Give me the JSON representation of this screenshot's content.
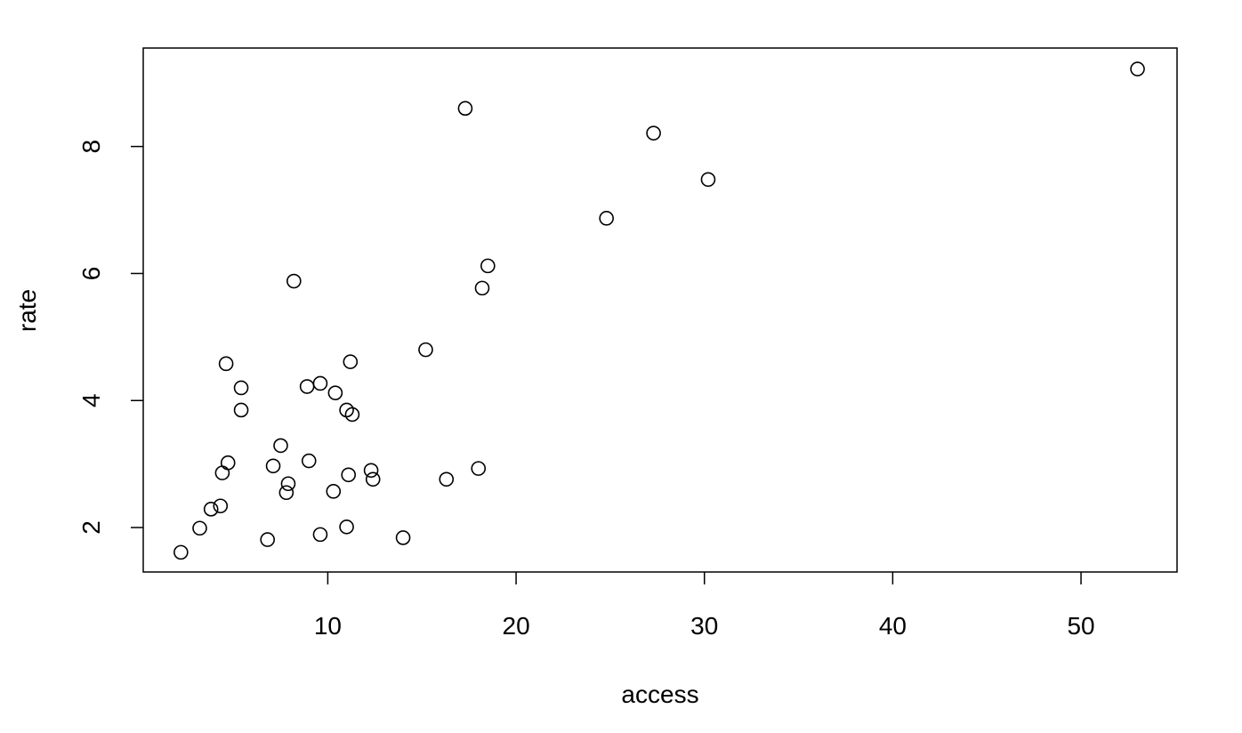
{
  "chart_data": {
    "type": "scatter",
    "title": "",
    "xlabel": "access",
    "ylabel": "rate",
    "xlim": [
      0.2,
      55.1
    ],
    "ylim": [
      1.3,
      9.55
    ],
    "xticks": [
      10,
      20,
      30,
      40,
      50
    ],
    "yticks": [
      2,
      4,
      6,
      8
    ],
    "grid": false,
    "legend": "none",
    "points": [
      {
        "x": 53.0,
        "y": 9.22
      },
      {
        "x": 17.3,
        "y": 8.6
      },
      {
        "x": 27.3,
        "y": 8.21
      },
      {
        "x": 30.2,
        "y": 7.48
      },
      {
        "x": 24.8,
        "y": 6.87
      },
      {
        "x": 18.5,
        "y": 6.12
      },
      {
        "x": 18.2,
        "y": 5.77
      },
      {
        "x": 8.2,
        "y": 5.88
      },
      {
        "x": 15.2,
        "y": 4.8
      },
      {
        "x": 4.6,
        "y": 4.58
      },
      {
        "x": 11.2,
        "y": 4.61
      },
      {
        "x": 9.6,
        "y": 4.27
      },
      {
        "x": 8.9,
        "y": 4.22
      },
      {
        "x": 5.4,
        "y": 4.2
      },
      {
        "x": 10.4,
        "y": 4.12
      },
      {
        "x": 5.4,
        "y": 3.85
      },
      {
        "x": 11.0,
        "y": 3.85
      },
      {
        "x": 11.3,
        "y": 3.78
      },
      {
        "x": 7.5,
        "y": 3.29
      },
      {
        "x": 9.0,
        "y": 3.05
      },
      {
        "x": 4.7,
        "y": 3.02
      },
      {
        "x": 7.1,
        "y": 2.97
      },
      {
        "x": 18.0,
        "y": 2.93
      },
      {
        "x": 12.3,
        "y": 2.9
      },
      {
        "x": 4.4,
        "y": 2.86
      },
      {
        "x": 11.1,
        "y": 2.83
      },
      {
        "x": 16.3,
        "y": 2.76
      },
      {
        "x": 12.4,
        "y": 2.76
      },
      {
        "x": 7.9,
        "y": 2.69
      },
      {
        "x": 10.3,
        "y": 2.57
      },
      {
        "x": 7.8,
        "y": 2.55
      },
      {
        "x": 4.3,
        "y": 2.34
      },
      {
        "x": 3.8,
        "y": 2.29
      },
      {
        "x": 3.2,
        "y": 1.99
      },
      {
        "x": 11.0,
        "y": 2.01
      },
      {
        "x": 9.6,
        "y": 1.89
      },
      {
        "x": 14.0,
        "y": 1.84
      },
      {
        "x": 6.8,
        "y": 1.81
      },
      {
        "x": 2.2,
        "y": 1.61
      }
    ]
  }
}
